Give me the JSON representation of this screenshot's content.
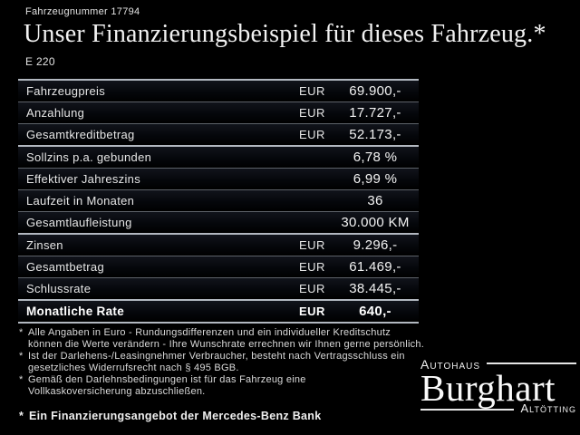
{
  "header": {
    "vehicle_number": "Fahrzeugnummer 17794",
    "title": "Unser Finanzierungsbeispiel für dieses Fahrzeug.*",
    "model": "E 220"
  },
  "table": {
    "groups": [
      {
        "rows": [
          {
            "label": "Fahrzeugpreis",
            "currency": "EUR",
            "value": "69.900,-"
          },
          {
            "label": "Anzahlung",
            "currency": "EUR",
            "value": "17.727,-"
          },
          {
            "label": "Gesamtkreditbetrag",
            "currency": "EUR",
            "value": "52.173,-"
          }
        ]
      },
      {
        "rows": [
          {
            "label": "Sollzins p.a. gebunden",
            "currency": "",
            "value": "6,78 %"
          },
          {
            "label": "Effektiver Jahreszins",
            "currency": "",
            "value": "6,99 %"
          },
          {
            "label": "Laufzeit in Monaten",
            "currency": "",
            "value": "36"
          },
          {
            "label": "Gesamtlaufleistung",
            "currency": "",
            "value": "30.000 KM"
          }
        ]
      },
      {
        "rows": [
          {
            "label": "Zinsen",
            "currency": "EUR",
            "value": "9.296,-"
          },
          {
            "label": "Gesamtbetrag",
            "currency": "EUR",
            "value": "61.469,-"
          },
          {
            "label": "Schlussrate",
            "currency": "EUR",
            "value": "38.445,-"
          }
        ]
      },
      {
        "rows": [
          {
            "label": "Monatliche Rate",
            "currency": "EUR",
            "value": "640,-",
            "emphasis": true
          }
        ]
      }
    ]
  },
  "footnotes": [
    {
      "marker": "*",
      "lines": [
        "Alle Angaben in Euro - Rundungsdifferenzen und ein individueller Kreditschutz",
        "können die Werte verändern - Ihre Wunschrate errechnen wir Ihnen gerne persönlich."
      ]
    },
    {
      "marker": "*",
      "lines": [
        "Ist der Darlehens-/Leasingnehmer Verbraucher, besteht nach Vertragsschluss ein",
        "gesetzliches Widerrufsrecht nach § 495 BGB."
      ]
    },
    {
      "marker": "*",
      "lines": [
        "Gemäß den Darlehnsbedingungen ist für das Fahrzeug eine",
        "Vollkaskoversicherung abzuschließen."
      ]
    }
  ],
  "financing_note": {
    "marker": "*",
    "text": "Ein Finanzierungsangebot der Mercedes-Benz Bank"
  },
  "logo": {
    "top": "Autohaus",
    "name": "Burghart",
    "bottom": "Altötting"
  },
  "colors": {
    "background": "#000000",
    "text": "#e9e9e9",
    "separator": "#5d6269",
    "group_separator": "#b2b8c0",
    "row_gradient_top": "#11141b"
  }
}
